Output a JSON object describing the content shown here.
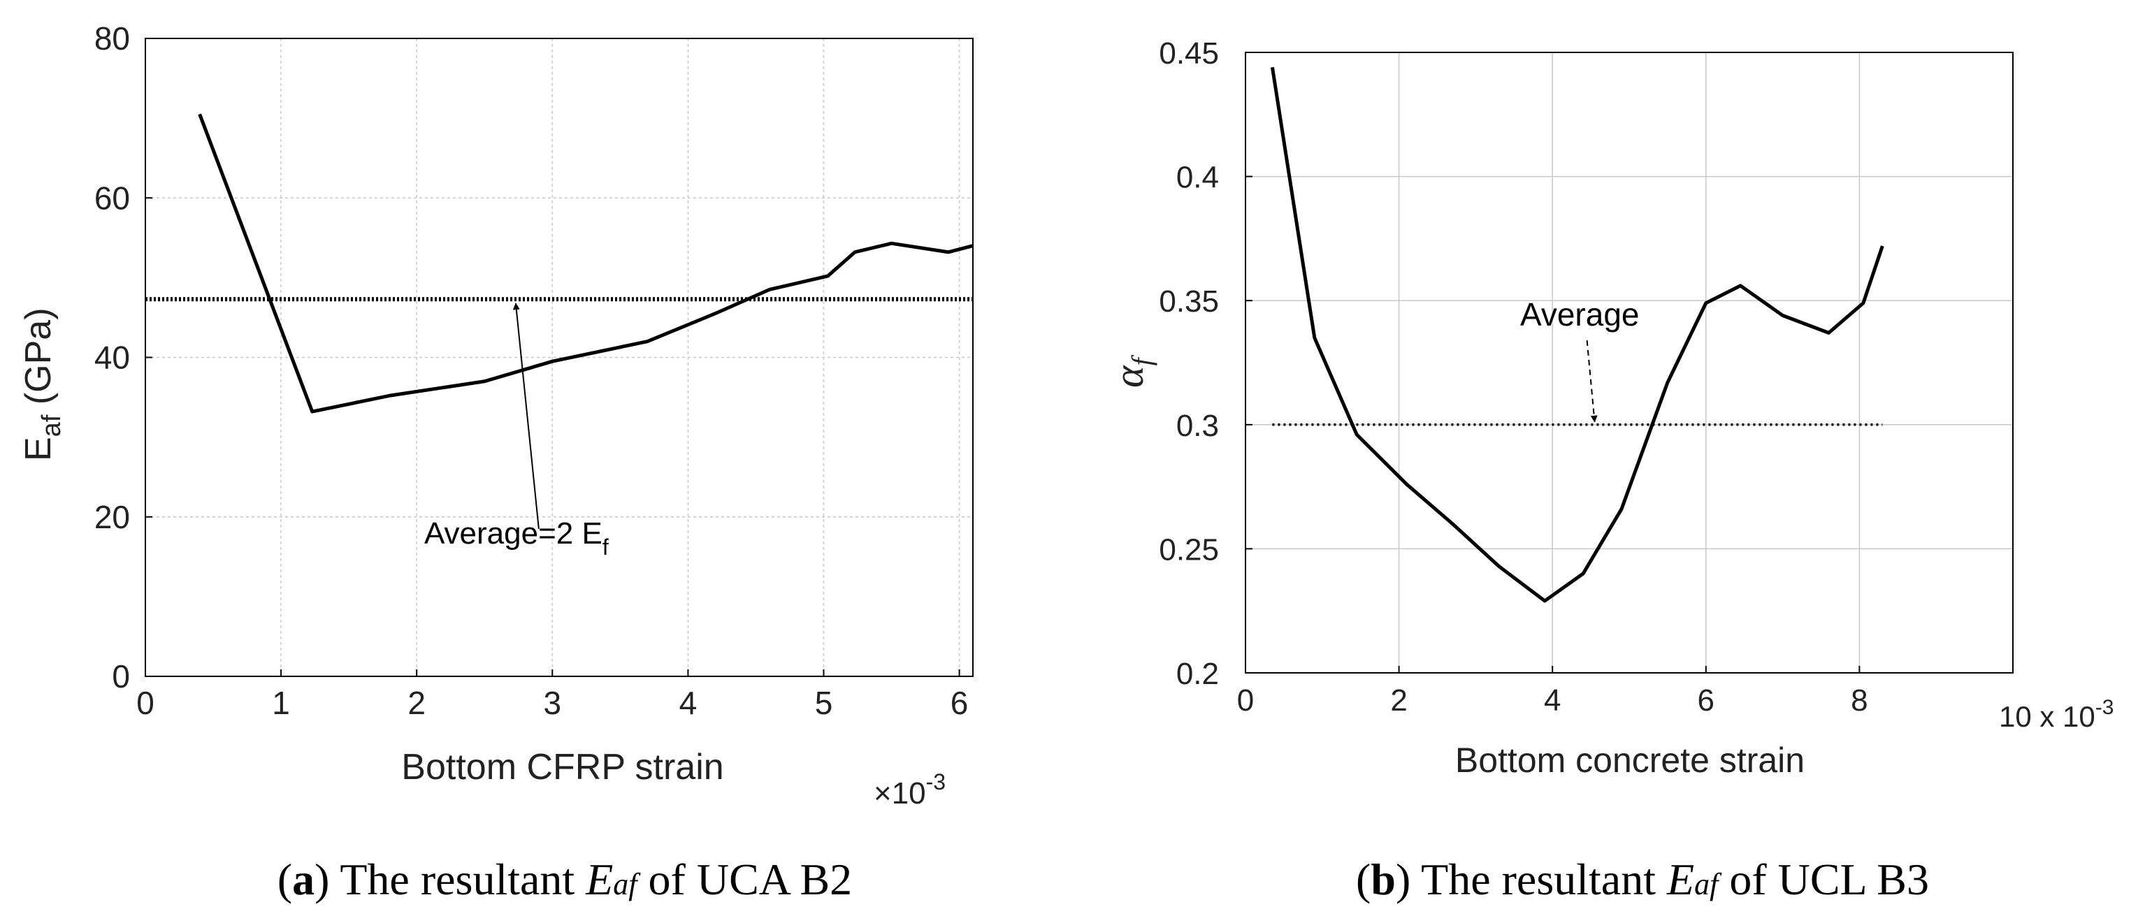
{
  "colors": {
    "line": "#000000",
    "grid": "#c8c8c8",
    "frame": "#000000",
    "text": "#222222"
  },
  "chart_data": [
    {
      "id": "a",
      "type": "line",
      "caption": {
        "letter": "a",
        "prefix": "The resultant ",
        "symbol_main": "E",
        "symbol_sub": "af",
        "suffix": " of UCA B2"
      },
      "xlabel": "Bottom CFRP strain",
      "ylabel": {
        "main": "E",
        "sub": "af",
        "unit": " (GPa)"
      },
      "x_multiplier": {
        "text": "×10",
        "exp": "-3"
      },
      "xlim": [
        0,
        6.1
      ],
      "ylim": [
        0,
        80
      ],
      "xticks": [
        0,
        1,
        2,
        3,
        4,
        5,
        6
      ],
      "yticks": [
        0,
        20,
        40,
        60,
        80
      ],
      "grid": true,
      "series": [
        {
          "name": "Eaf",
          "style": "solid",
          "x": [
            0.4,
            1.23,
            1.8,
            2.5,
            3.0,
            3.7,
            4.2,
            4.6,
            5.03,
            5.23,
            5.5,
            5.92,
            6.1
          ],
          "y": [
            70.5,
            33.2,
            35.2,
            37.0,
            39.5,
            42.0,
            45.5,
            48.5,
            50.2,
            53.2,
            54.3,
            53.2,
            54.0
          ]
        },
        {
          "name": "Average",
          "style": "dotted",
          "x": [
            0,
            6.1
          ],
          "y": [
            47.3,
            47.3
          ]
        }
      ],
      "annotation": {
        "main": "Average=2 E",
        "sub": "f",
        "arrow_from": [
          2.9,
          18.5
        ],
        "arrow_to": [
          2.73,
          47.3
        ]
      }
    },
    {
      "id": "b",
      "type": "line",
      "caption": {
        "letter": "b",
        "prefix": "The resultant ",
        "symbol_main": "E",
        "symbol_sub": "af",
        "suffix": " of UCL B3"
      },
      "xlabel": "Bottom concrete strain",
      "ylabel": {
        "main": "α",
        "sub": "f"
      },
      "x_multiplier": {
        "text": "10 x 10",
        "exp": "-3"
      },
      "xlim": [
        0,
        10
      ],
      "ylim": [
        0.2,
        0.45
      ],
      "xticks": [
        0,
        2,
        4,
        6,
        8
      ],
      "xtick_labels": [
        "0",
        "2",
        "4",
        "6",
        "8"
      ],
      "yticks": [
        0.2,
        0.25,
        0.3,
        0.35,
        0.4,
        0.45
      ],
      "ytick_labels": [
        "0.2",
        "0.25",
        "0.3",
        "0.35",
        "0.4",
        "0.45"
      ],
      "grid": true,
      "series": [
        {
          "name": "alpha_f",
          "style": "solid",
          "x": [
            0.35,
            0.9,
            1.45,
            2.1,
            2.7,
            3.3,
            3.9,
            4.4,
            4.9,
            5.5,
            6.0,
            6.45,
            7.0,
            7.6,
            8.05,
            8.3
          ],
          "y": [
            0.444,
            0.335,
            0.296,
            0.276,
            0.26,
            0.243,
            0.229,
            0.24,
            0.266,
            0.317,
            0.349,
            0.356,
            0.344,
            0.337,
            0.349,
            0.372
          ]
        },
        {
          "name": "Average",
          "style": "dotted",
          "x": [
            0.35,
            8.3
          ],
          "y": [
            0.3,
            0.3
          ]
        }
      ],
      "annotation": {
        "main": "Average",
        "arrow_from": [
          4.45,
          0.334
        ],
        "arrow_to": [
          4.55,
          0.3
        ]
      }
    }
  ]
}
